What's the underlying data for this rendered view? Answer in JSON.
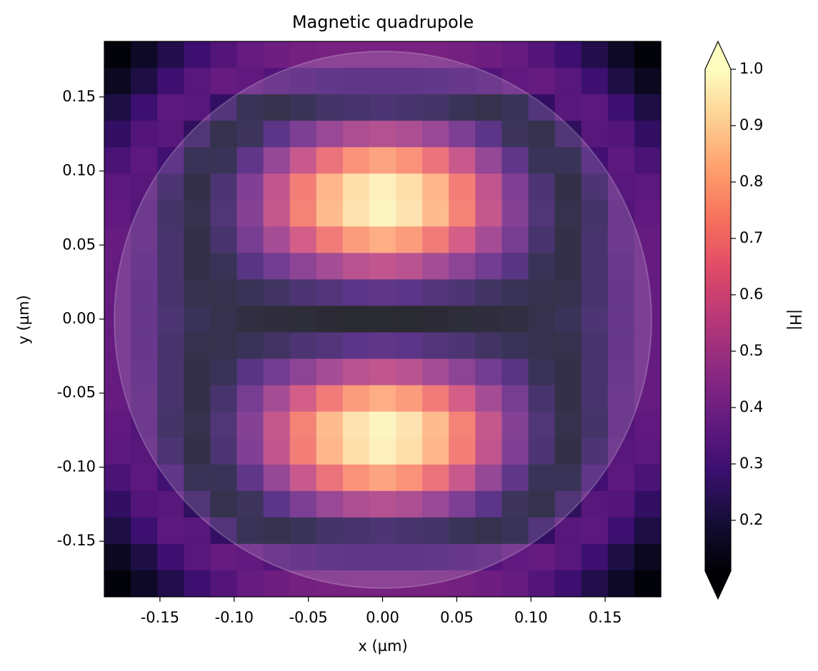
{
  "chart_data": {
    "type": "heatmap",
    "title": "Magnetic quadrupole",
    "x_label": "x (µm)",
    "y_label": "y (µm)",
    "colorbar_label": "|H|",
    "colormap": "magma",
    "colorbar_extend": "both",
    "xlim": [
      -0.1875,
      0.1875
    ],
    "ylim": [
      -0.1875,
      0.1875
    ],
    "clim": [
      0.11,
      1.0
    ],
    "xticks": [
      -0.15,
      {
        "value": -0.1,
        "label": "-0.10"
      },
      -0.05,
      {
        "value": 0,
        "label": "0.00"
      },
      0.05,
      {
        "value": 0.1,
        "label": "0.10"
      },
      0.15
    ],
    "yticks": [
      -0.15,
      {
        "value": -0.1,
        "label": "-0.10"
      },
      -0.05,
      {
        "value": 0,
        "label": "0.00"
      },
      0.05,
      {
        "value": 0.1,
        "label": "0.10"
      },
      0.15
    ],
    "cticks": [
      0.2,
      0.3,
      0.4,
      0.5,
      0.6,
      0.7,
      0.8,
      0.9,
      {
        "value": 1,
        "label": "1.0"
      }
    ],
    "z": [
      [
        0.12,
        0.17,
        0.23,
        0.29,
        0.34,
        0.38,
        0.4,
        0.41,
        0.42,
        0.42,
        0.42,
        0.42,
        0.42,
        0.41,
        0.4,
        0.38,
        0.34,
        0.29,
        0.23,
        0.17,
        0.12
      ],
      [
        0.16,
        0.22,
        0.29,
        0.35,
        0.38,
        0.37,
        0.34,
        0.32,
        0.31,
        0.3,
        0.3,
        0.3,
        0.31,
        0.32,
        0.34,
        0.37,
        0.38,
        0.35,
        0.29,
        0.22,
        0.16
      ],
      [
        0.22,
        0.29,
        0.36,
        0.35,
        0.27,
        0.2,
        0.18,
        0.2,
        0.23,
        0.24,
        0.25,
        0.24,
        0.23,
        0.2,
        0.18,
        0.2,
        0.27,
        0.35,
        0.36,
        0.29,
        0.22
      ],
      [
        0.27,
        0.34,
        0.35,
        0.26,
        0.18,
        0.21,
        0.29,
        0.38,
        0.45,
        0.5,
        0.52,
        0.5,
        0.45,
        0.38,
        0.29,
        0.21,
        0.18,
        0.26,
        0.35,
        0.34,
        0.27
      ],
      [
        0.32,
        0.36,
        0.3,
        0.2,
        0.2,
        0.3,
        0.44,
        0.57,
        0.68,
        0.76,
        0.8,
        0.76,
        0.68,
        0.57,
        0.44,
        0.3,
        0.2,
        0.2,
        0.3,
        0.36,
        0.32
      ],
      [
        0.36,
        0.35,
        0.25,
        0.17,
        0.25,
        0.39,
        0.55,
        0.71,
        0.84,
        0.93,
        0.97,
        0.93,
        0.84,
        0.71,
        0.55,
        0.39,
        0.25,
        0.17,
        0.25,
        0.35,
        0.36
      ],
      [
        0.37,
        0.34,
        0.23,
        0.18,
        0.26,
        0.4,
        0.56,
        0.72,
        0.85,
        0.94,
        0.98,
        0.94,
        0.85,
        0.72,
        0.56,
        0.4,
        0.26,
        0.18,
        0.23,
        0.34,
        0.37
      ],
      [
        0.38,
        0.34,
        0.24,
        0.17,
        0.24,
        0.36,
        0.48,
        0.6,
        0.7,
        0.78,
        0.82,
        0.78,
        0.7,
        0.6,
        0.48,
        0.36,
        0.24,
        0.17,
        0.24,
        0.34,
        0.38
      ],
      [
        0.38,
        0.33,
        0.24,
        0.17,
        0.2,
        0.28,
        0.35,
        0.42,
        0.48,
        0.53,
        0.55,
        0.53,
        0.48,
        0.42,
        0.35,
        0.28,
        0.2,
        0.17,
        0.24,
        0.33,
        0.38
      ],
      [
        0.38,
        0.32,
        0.24,
        0.18,
        0.18,
        0.2,
        0.22,
        0.25,
        0.27,
        0.29,
        0.3,
        0.29,
        0.27,
        0.25,
        0.22,
        0.2,
        0.18,
        0.18,
        0.24,
        0.32,
        0.38
      ],
      [
        0.38,
        0.32,
        0.25,
        0.2,
        0.18,
        0.16,
        0.15,
        0.14,
        0.13,
        0.12,
        0.12,
        0.12,
        0.13,
        0.14,
        0.15,
        0.16,
        0.18,
        0.2,
        0.25,
        0.32,
        0.38
      ],
      [
        0.38,
        0.32,
        0.24,
        0.18,
        0.18,
        0.2,
        0.22,
        0.25,
        0.27,
        0.29,
        0.3,
        0.29,
        0.27,
        0.25,
        0.22,
        0.2,
        0.18,
        0.18,
        0.24,
        0.32,
        0.38
      ],
      [
        0.38,
        0.33,
        0.24,
        0.17,
        0.2,
        0.28,
        0.35,
        0.42,
        0.48,
        0.53,
        0.55,
        0.53,
        0.48,
        0.42,
        0.35,
        0.28,
        0.2,
        0.17,
        0.24,
        0.33,
        0.38
      ],
      [
        0.38,
        0.34,
        0.24,
        0.17,
        0.24,
        0.36,
        0.48,
        0.6,
        0.7,
        0.78,
        0.82,
        0.78,
        0.7,
        0.6,
        0.48,
        0.36,
        0.24,
        0.17,
        0.24,
        0.34,
        0.38
      ],
      [
        0.37,
        0.34,
        0.23,
        0.18,
        0.26,
        0.4,
        0.56,
        0.72,
        0.85,
        0.94,
        0.98,
        0.94,
        0.85,
        0.72,
        0.56,
        0.4,
        0.26,
        0.18,
        0.23,
        0.34,
        0.37
      ],
      [
        0.36,
        0.35,
        0.25,
        0.17,
        0.25,
        0.39,
        0.55,
        0.71,
        0.84,
        0.93,
        0.97,
        0.93,
        0.84,
        0.71,
        0.55,
        0.39,
        0.25,
        0.17,
        0.25,
        0.35,
        0.36
      ],
      [
        0.32,
        0.36,
        0.3,
        0.2,
        0.2,
        0.3,
        0.44,
        0.57,
        0.68,
        0.76,
        0.8,
        0.76,
        0.68,
        0.57,
        0.44,
        0.3,
        0.2,
        0.2,
        0.3,
        0.36,
        0.32
      ],
      [
        0.27,
        0.34,
        0.35,
        0.26,
        0.18,
        0.21,
        0.29,
        0.38,
        0.45,
        0.5,
        0.52,
        0.5,
        0.45,
        0.38,
        0.29,
        0.21,
        0.18,
        0.26,
        0.35,
        0.34,
        0.27
      ],
      [
        0.22,
        0.29,
        0.36,
        0.35,
        0.27,
        0.2,
        0.18,
        0.2,
        0.23,
        0.24,
        0.25,
        0.24,
        0.23,
        0.2,
        0.18,
        0.2,
        0.27,
        0.35,
        0.36,
        0.29,
        0.22
      ],
      [
        0.16,
        0.22,
        0.29,
        0.35,
        0.38,
        0.37,
        0.34,
        0.32,
        0.31,
        0.3,
        0.3,
        0.3,
        0.31,
        0.32,
        0.34,
        0.37,
        0.38,
        0.35,
        0.29,
        0.22,
        0.16
      ],
      [
        0.12,
        0.17,
        0.23,
        0.29,
        0.34,
        0.38,
        0.4,
        0.41,
        0.42,
        0.42,
        0.42,
        0.42,
        0.42,
        0.41,
        0.4,
        0.38,
        0.34,
        0.29,
        0.23,
        0.17,
        0.12
      ]
    ]
  }
}
